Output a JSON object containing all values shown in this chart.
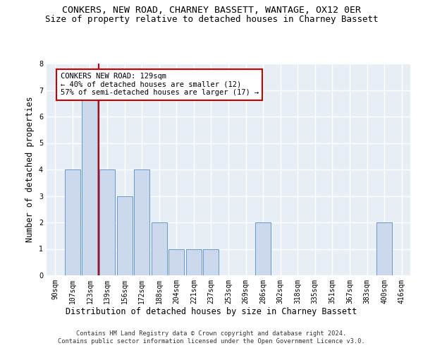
{
  "title1": "CONKERS, NEW ROAD, CHARNEY BASSETT, WANTAGE, OX12 0ER",
  "title2": "Size of property relative to detached houses in Charney Bassett",
  "xlabel": "Distribution of detached houses by size in Charney Bassett",
  "ylabel": "Number of detached properties",
  "footnote": "Contains HM Land Registry data © Crown copyright and database right 2024.\nContains public sector information licensed under the Open Government Licence v3.0.",
  "categories": [
    "90sqm",
    "107sqm",
    "123sqm",
    "139sqm",
    "156sqm",
    "172sqm",
    "188sqm",
    "204sqm",
    "221sqm",
    "237sqm",
    "253sqm",
    "269sqm",
    "286sqm",
    "302sqm",
    "318sqm",
    "335sqm",
    "351sqm",
    "367sqm",
    "383sqm",
    "400sqm",
    "416sqm"
  ],
  "values": [
    0,
    4,
    7,
    4,
    3,
    4,
    2,
    1,
    1,
    1,
    0,
    0,
    2,
    0,
    0,
    0,
    0,
    0,
    0,
    2,
    0
  ],
  "bar_color": "#ccd9ec",
  "bar_edge_color": "#6699cc",
  "vline_color": "#cc0000",
  "vline_index": 2.5,
  "annotation_text": "CONKERS NEW ROAD: 129sqm\n← 40% of detached houses are smaller (12)\n57% of semi-detached houses are larger (17) →",
  "annotation_box_color": "#ffffff",
  "annotation_box_edge": "#cc0000",
  "ylim": [
    0,
    8
  ],
  "yticks": [
    0,
    1,
    2,
    3,
    4,
    5,
    6,
    7,
    8
  ],
  "background_color": "#e8eef5",
  "grid_color": "#ffffff",
  "title1_fontsize": 9.5,
  "title2_fontsize": 9,
  "xlabel_fontsize": 8.5,
  "ylabel_fontsize": 8.5,
  "tick_fontsize": 7,
  "annot_fontsize": 7.5
}
